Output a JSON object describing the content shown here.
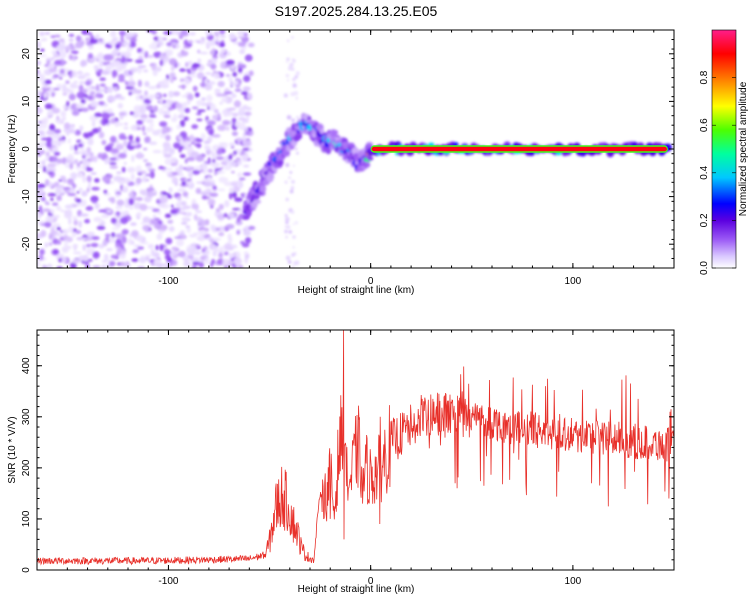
{
  "figure": {
    "title": "S197.2025.284.13.25.E05"
  },
  "chart_data": [
    {
      "type": "heatmap",
      "name": "spectrogram",
      "title": "S197.2025.284.13.25.E05",
      "xlabel": "Height of straight line (km)",
      "ylabel": "Frequency (Hz)",
      "xlim": [
        -165,
        150
      ],
      "ylim": [
        -25,
        25
      ],
      "x_ticks": [
        -100,
        0,
        100
      ],
      "y_ticks": [
        -20,
        -10,
        0,
        10,
        20
      ],
      "colorbar": {
        "label": "Normalized spectral amplitude",
        "range": [
          0,
          1
        ],
        "ticks": [
          0.0,
          0.2,
          0.4,
          0.6,
          0.8
        ],
        "colormap": [
          "#ffffff",
          "#e6d7ff",
          "#9b59f5",
          "#5b00e0",
          "#0000ff",
          "#00c8ff",
          "#00ff9f",
          "#4dff00",
          "#ffff00",
          "#ff8c00",
          "#ff0000",
          "#ff1d8a"
        ]
      },
      "features": {
        "noise_region_km": [
          -165,
          -62
        ],
        "noise_amplitude": 0.2,
        "signal_track": {
          "x": [
            -62,
            -55,
            -48,
            -40,
            -34,
            -30,
            -26,
            -22,
            -18,
            -14,
            -10,
            -6,
            -2,
            0,
            20,
            60,
            100,
            147
          ],
          "freq": [
            -13,
            -8,
            -3,
            2,
            5,
            5,
            3,
            1,
            2,
            0,
            -1,
            -3,
            -2,
            0,
            0,
            0,
            0,
            0
          ],
          "amplitude": [
            0.3,
            0.3,
            0.35,
            0.45,
            0.45,
            0.4,
            0.35,
            0.4,
            0.45,
            0.45,
            0.35,
            0.3,
            0.35,
            0.95,
            0.95,
            0.95,
            0.95,
            0.95
          ]
        }
      }
    },
    {
      "type": "line",
      "name": "snr",
      "xlabel": "Height of straight line (km)",
      "ylabel": "SNR (10 * V/V)",
      "xlim": [
        -165,
        150
      ],
      "ylim": [
        0,
        470
      ],
      "x_ticks": [
        -100,
        0,
        100
      ],
      "y_ticks": [
        0,
        100,
        200,
        300,
        400
      ],
      "color": "#e8302a",
      "series": [
        {
          "name": "SNR",
          "x": [
            -165,
            -140,
            -110,
            -80,
            -60,
            -52,
            -50,
            -47,
            -44,
            -41,
            -38,
            -36,
            -34,
            -31,
            -28,
            -26,
            -24,
            -22,
            -20,
            -18,
            -16,
            -15,
            -14,
            -13.5,
            -12,
            -10,
            -8,
            -6,
            -4,
            -2,
            0,
            2,
            5,
            8,
            10,
            15,
            20,
            25,
            30,
            35,
            40,
            45,
            50,
            55,
            60,
            65,
            70,
            80,
            90,
            100,
            110,
            120,
            130,
            140,
            147,
            150
          ],
          "y": [
            18,
            18,
            18,
            20,
            22,
            30,
            55,
            120,
            145,
            130,
            90,
            70,
            40,
            25,
            20,
            120,
            160,
            140,
            190,
            110,
            220,
            260,
            240,
            465,
            180,
            170,
            220,
            240,
            180,
            200,
            180,
            190,
            200,
            230,
            250,
            265,
            280,
            290,
            300,
            305,
            300,
            305,
            300,
            295,
            290,
            285,
            280,
            275,
            270,
            265,
            262,
            258,
            252,
            248,
            245,
            240
          ]
        }
      ]
    }
  ]
}
